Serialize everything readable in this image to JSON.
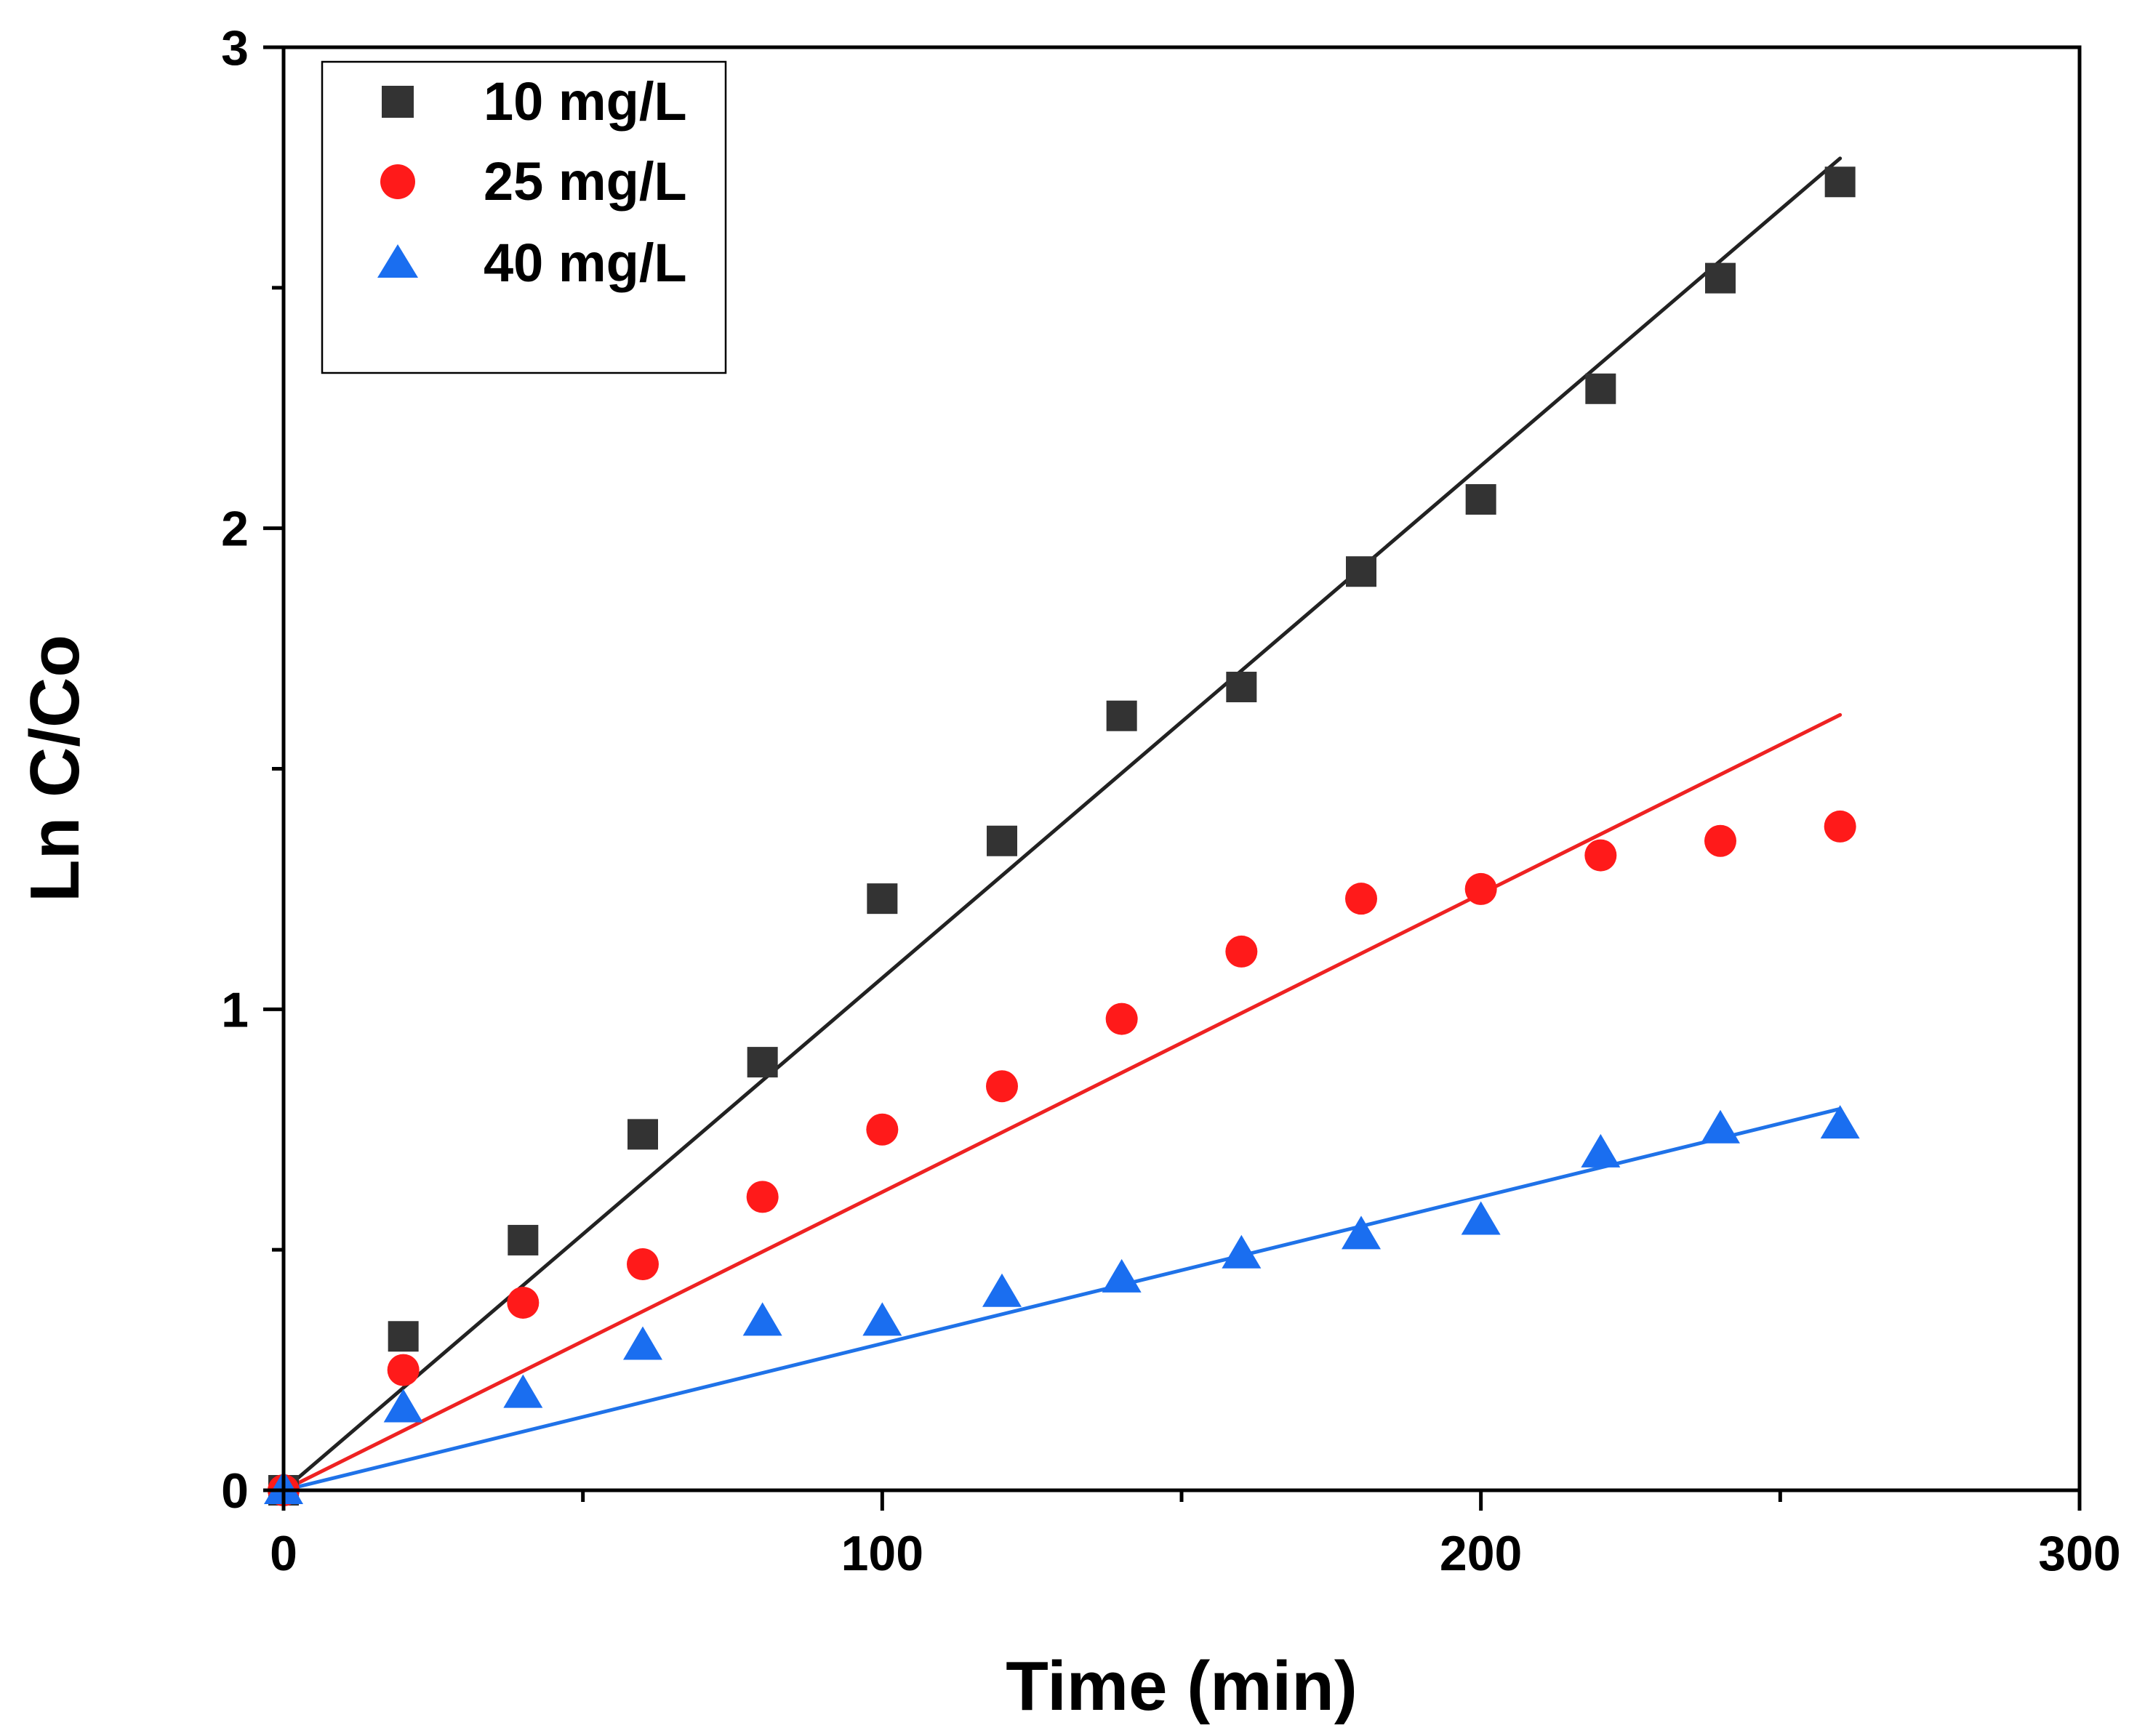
{
  "chart_data": {
    "type": "scatter",
    "title": "",
    "xlabel": "Time (min)",
    "ylabel": "Ln C/Co",
    "xlim": [
      0,
      300
    ],
    "ylim": [
      0,
      3
    ],
    "x_ticks": [
      0,
      100,
      200,
      300
    ],
    "y_ticks": [
      0,
      1,
      2,
      3
    ],
    "x_tick_labels": [
      "0",
      "100",
      "200",
      "300"
    ],
    "y_tick_labels": [
      "0",
      "1",
      "2",
      "3"
    ],
    "grid": false,
    "legend_position": "top-left",
    "x": [
      0,
      20,
      40,
      60,
      80,
      100,
      120,
      140,
      160,
      180,
      200,
      220,
      240,
      260
    ],
    "series": [
      {
        "name": "10 mg/L",
        "marker": "square",
        "color": "#333333",
        "line_color": "#222222",
        "values": [
          0,
          0.32,
          0.52,
          0.74,
          0.89,
          1.23,
          1.35,
          1.61,
          1.67,
          1.91,
          2.06,
          2.29,
          2.52,
          2.72
        ],
        "fit_slope": 0.01065
      },
      {
        "name": "25 mg/L",
        "marker": "circle",
        "color": "#ff1a1a",
        "line_color": "#ee2222",
        "values": [
          0,
          0.25,
          0.39,
          0.47,
          0.61,
          0.75,
          0.84,
          0.98,
          1.12,
          1.23,
          1.25,
          1.32,
          1.35,
          1.38
        ],
        "fit_slope": 0.0062
      },
      {
        "name": "40 mg/L",
        "marker": "triangle",
        "color": "#1a6ef0",
        "line_color": "#1f72e8",
        "values": [
          0,
          0.17,
          0.2,
          0.3,
          0.35,
          0.35,
          0.41,
          0.44,
          0.49,
          0.53,
          0.56,
          0.7,
          0.75,
          0.76
        ],
        "fit_slope": 0.00305
      }
    ]
  }
}
